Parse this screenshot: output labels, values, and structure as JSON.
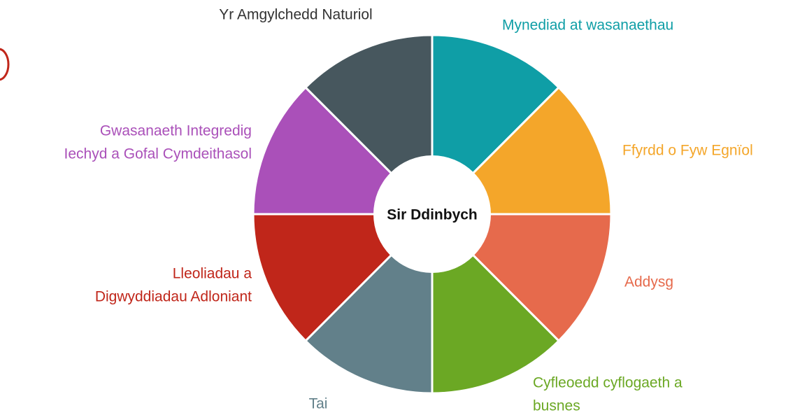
{
  "center": "Sir Ddinbych",
  "segments": [
    {
      "lines": [
        "Mynediad at wasanaethau"
      ],
      "color": "#0f9ea6"
    },
    {
      "lines": [
        "Ffyrdd o Fyw Egnïol"
      ],
      "color": "#f4a62a"
    },
    {
      "lines": [
        "Addysg"
      ],
      "color": "#e66a4c"
    },
    {
      "lines": [
        "Cyfleoedd cyflogaeth a",
        "busnes"
      ],
      "color": "#6ba824"
    },
    {
      "lines": [
        "Tai"
      ],
      "color": "#62808a"
    },
    {
      "lines": [
        "Lleoliadau a",
        "Digwyddiadau Adloniant"
      ],
      "color": "#c0261a"
    },
    {
      "lines": [
        "Gwasanaeth Integredig",
        "Iechyd a Gofal Cymdeithasol"
      ],
      "color": "#aa50b9"
    },
    {
      "lines": [
        "Yr Amgylchedd Naturiol"
      ],
      "color": "#47575e"
    }
  ]
}
